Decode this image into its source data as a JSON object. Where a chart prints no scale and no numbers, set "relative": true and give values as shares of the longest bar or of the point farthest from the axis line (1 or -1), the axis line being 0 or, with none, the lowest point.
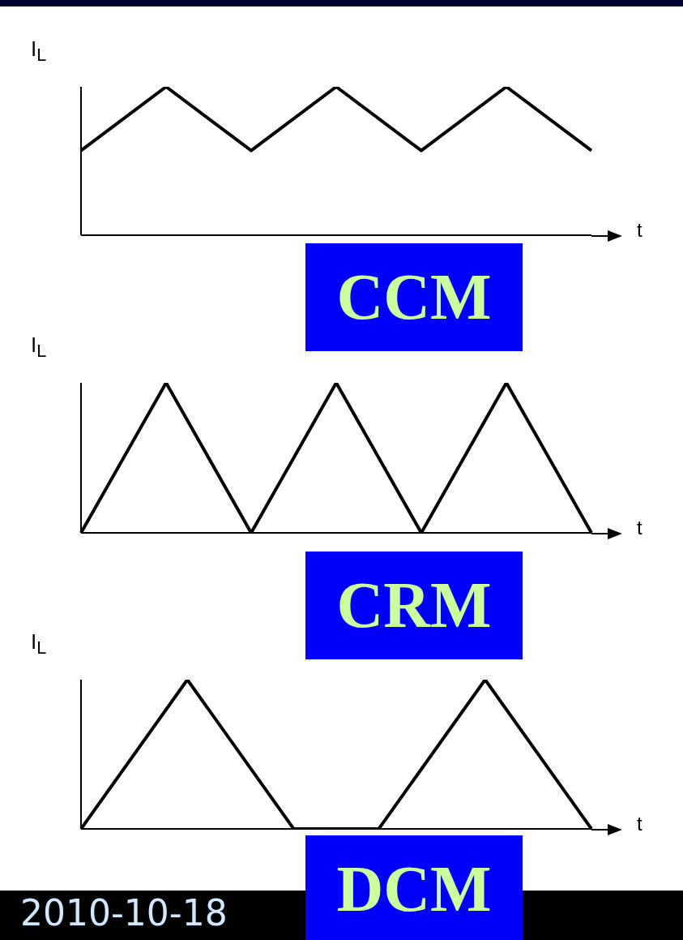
{
  "chart_data": [
    {
      "type": "line",
      "relative": true,
      "ylabel": "I$_{L}$",
      "xlabel": "t",
      "annotations": [
        "CCM"
      ],
      "marker": "none",
      "line_style": "solid",
      "categories": [
        null,
        null,
        null,
        null,
        null,
        null,
        null
      ],
      "series": [
        {
          "color": "#000000",
          "values": [
            0.57,
            1,
            0.57,
            1,
            0.57,
            1,
            0.57
          ]
        }
      ]
    },
    {
      "type": "line",
      "relative": true,
      "ylabel": "I$_{L}$",
      "xlabel": "t",
      "annotations": [
        "CRM"
      ],
      "marker": "none",
      "line_style": "solid",
      "categories": [
        null,
        null,
        null,
        null,
        null,
        null,
        null
      ],
      "series": [
        {
          "color": "#000000",
          "values": [
            0,
            1,
            0,
            1,
            0,
            1,
            0
          ]
        }
      ]
    },
    {
      "type": "line",
      "relative": true,
      "ylabel": "I$_{L}$",
      "xlabel": "t",
      "annotations": [
        "DCM",
        "2010-10-18"
      ],
      "marker": "none",
      "line_style": "solid",
      "categories": [
        null,
        null,
        null,
        null,
        null,
        null,
        null,
        null,
        null,
        null,
        null,
        null,
        null,
        null,
        null,
        null,
        null,
        null,
        null,
        null,
        null,
        null,
        null,
        null,
        null
      ],
      "series": [
        {
          "color": "#000000",
          "values": [
            0,
            null,
            null,
            null,
            null,
            1,
            null,
            null,
            null,
            null,
            0,
            null,
            null,
            null,
            0,
            null,
            null,
            null,
            null,
            1,
            null,
            null,
            null,
            null,
            0
          ]
        }
      ]
    }
  ]
}
